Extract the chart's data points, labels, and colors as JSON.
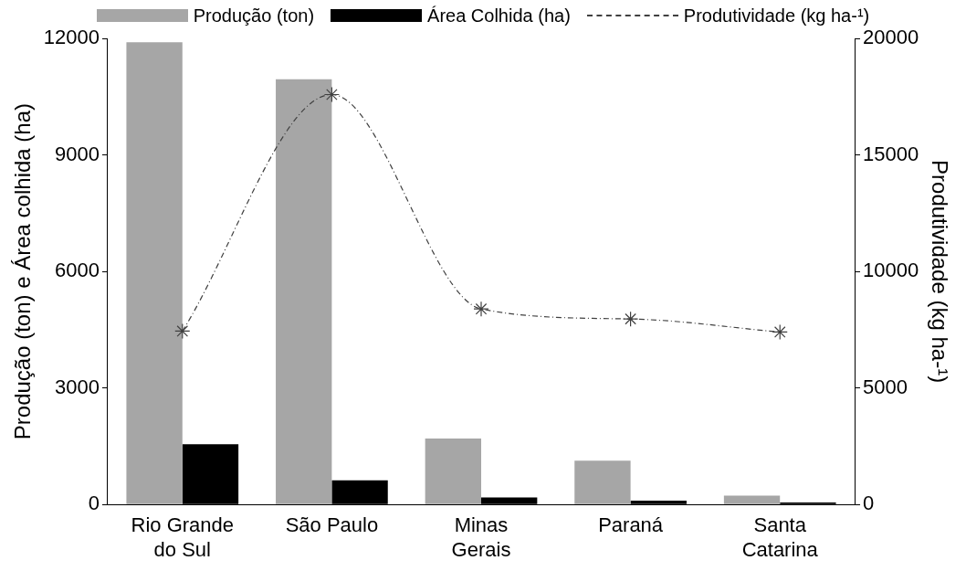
{
  "chart_data": {
    "type": "bar",
    "categories": [
      "Rio Grande do Sul",
      "São Paulo",
      "Minas Gerais",
      "Paraná",
      "Santa Catarina"
    ],
    "ylabel": "Produção (ton) e Área colhida (ha)",
    "y2label": "Produtividade (kg ha-¹)",
    "ylim": [
      0,
      12000
    ],
    "yticks": [
      0,
      3000,
      6000,
      9000,
      12000
    ],
    "y2lim": [
      0,
      20000
    ],
    "y2ticks": [
      0,
      5000,
      10000,
      15000,
      20000
    ],
    "grid": false,
    "legend": "top",
    "series": [
      {
        "name": "Produção (ton)",
        "color": "#a6a6a6",
        "values": [
          11900,
          10950,
          1700,
          1130,
          230
        ]
      },
      {
        "name": "Área Colhida (ha)",
        "color": "#000000",
        "values": [
          1550,
          620,
          180,
          100,
          50
        ]
      },
      {
        "name": "Produtividade (kg ha-¹)",
        "type": "line",
        "axis": "y2",
        "color": "#404040",
        "marker": "cross",
        "line_style": "dashed",
        "values": [
          7440,
          17590,
          8390,
          7960,
          7400
        ]
      }
    ]
  }
}
